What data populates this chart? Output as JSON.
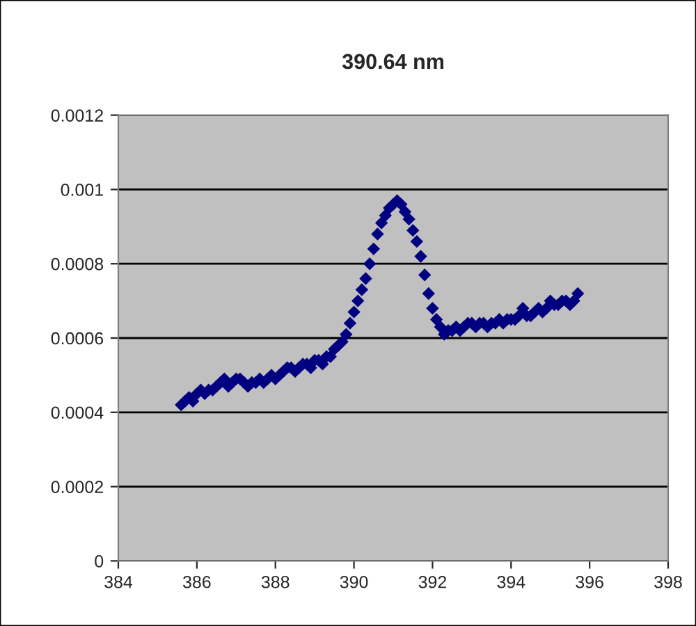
{
  "chart_data": {
    "type": "scatter",
    "title": "390.64 nm",
    "x": [
      385.6,
      385.7,
      385.8,
      385.9,
      386.0,
      386.1,
      386.2,
      386.3,
      386.4,
      386.5,
      386.6,
      386.7,
      386.8,
      386.9,
      387.0,
      387.1,
      387.2,
      387.3,
      387.4,
      387.5,
      387.6,
      387.7,
      387.8,
      387.9,
      388.0,
      388.1,
      388.2,
      388.3,
      388.4,
      388.5,
      388.6,
      388.7,
      388.8,
      388.9,
      389.0,
      389.1,
      389.2,
      389.3,
      389.4,
      389.5,
      389.6,
      389.7,
      389.8,
      389.9,
      390.0,
      390.1,
      390.2,
      390.3,
      390.4,
      390.5,
      390.6,
      390.7,
      390.8,
      390.9,
      391.0,
      391.1,
      391.2,
      391.3,
      391.4,
      391.5,
      391.6,
      391.7,
      391.8,
      391.9,
      392.0,
      392.1,
      392.2,
      392.3,
      392.4,
      392.5,
      392.6,
      392.7,
      392.8,
      392.9,
      393.0,
      393.1,
      393.2,
      393.3,
      393.4,
      393.5,
      393.6,
      393.7,
      393.8,
      393.9,
      394.0,
      394.1,
      394.2,
      394.3,
      394.4,
      394.5,
      394.6,
      394.7,
      394.8,
      394.9,
      395.0,
      395.1,
      395.2,
      395.3,
      395.4,
      395.5,
      395.6,
      395.7
    ],
    "series": [
      {
        "color": "#000080",
        "values": [
          0.00042,
          0.00043,
          0.00044,
          0.00043,
          0.00045,
          0.00046,
          0.00045,
          0.00046,
          0.00046,
          0.00047,
          0.00048,
          0.00049,
          0.00047,
          0.00048,
          0.00049,
          0.00049,
          0.00048,
          0.00047,
          0.00048,
          0.00048,
          0.00049,
          0.00048,
          0.00049,
          0.0005,
          0.00049,
          0.0005,
          0.00051,
          0.00052,
          0.00052,
          0.00051,
          0.00052,
          0.00053,
          0.00053,
          0.00052,
          0.00054,
          0.00054,
          0.00053,
          0.00055,
          0.00055,
          0.00057,
          0.00058,
          0.00059,
          0.00061,
          0.00064,
          0.00067,
          0.0007,
          0.00073,
          0.00076,
          0.0008,
          0.00084,
          0.00088,
          0.00091,
          0.00093,
          0.00095,
          0.00096,
          0.00097,
          0.00096,
          0.00094,
          0.00092,
          0.00089,
          0.00086,
          0.00082,
          0.00077,
          0.00072,
          0.00068,
          0.00065,
          0.00063,
          0.00061,
          0.00062,
          0.00062,
          0.00063,
          0.00062,
          0.00063,
          0.00064,
          0.00064,
          0.00063,
          0.00064,
          0.00064,
          0.00063,
          0.00064,
          0.00064,
          0.00065,
          0.00064,
          0.00065,
          0.00065,
          0.00065,
          0.00066,
          0.00068,
          0.00066,
          0.00066,
          0.00067,
          0.00068,
          0.00067,
          0.00068,
          0.0007,
          0.00069,
          0.00069,
          0.0007,
          0.0007,
          0.00069,
          0.0007,
          0.00072
        ]
      }
    ],
    "marker": "diamond",
    "xlim": [
      384,
      398
    ],
    "xticks": [
      384,
      386,
      388,
      390,
      392,
      394,
      396,
      398
    ],
    "ylim": [
      0,
      0.0012
    ],
    "yticks": [
      0,
      {
        "value": 0.0002,
        "label": "0.0002"
      },
      {
        "value": 0.0004,
        "label": "0.0004"
      },
      {
        "value": 0.0006,
        "label": "0.0006"
      },
      {
        "value": 0.0008,
        "label": "0.0008"
      },
      {
        "value": 0.001,
        "label": "0.001"
      },
      {
        "value": 0.0012,
        "label": "0.0012"
      }
    ],
    "grid": "y"
  }
}
